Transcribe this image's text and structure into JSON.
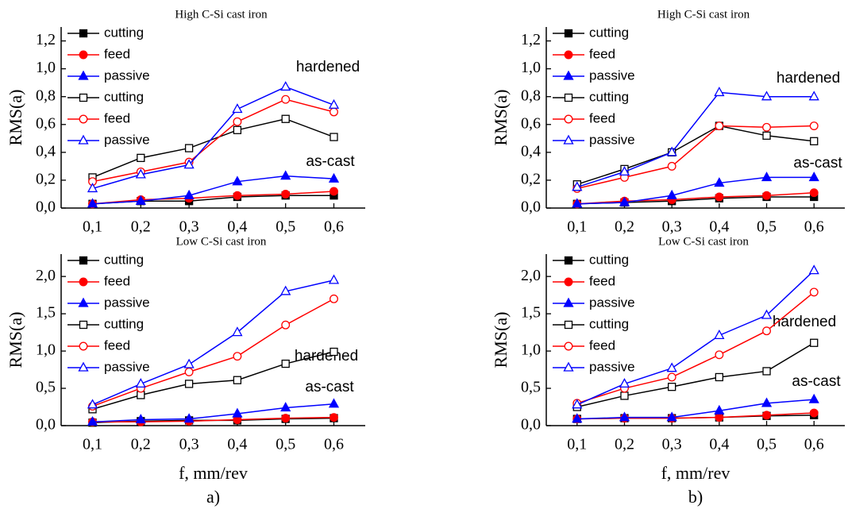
{
  "chart_data": [
    {
      "type": "line",
      "title": "High C-Si cast iron",
      "y_label": "RMS(a)",
      "x": [
        0.1,
        0.2,
        0.3,
        0.4,
        0.5,
        0.6
      ],
      "xlim": [
        0.035,
        0.665
      ],
      "xticks": [
        {
          "value": 0.1,
          "label": "0,1"
        },
        {
          "value": 0.2,
          "label": "0,2"
        },
        {
          "value": 0.3,
          "label": "0,3"
        },
        {
          "value": 0.4,
          "label": "0,4"
        },
        {
          "value": 0.5,
          "label": "0,5"
        },
        {
          "value": 0.6,
          "label": "0,6"
        }
      ],
      "ylim": [
        0,
        1.3
      ],
      "yticks": [
        {
          "value": 0,
          "label": "0,0"
        },
        {
          "value": 0.2,
          "label": "0,2"
        },
        {
          "value": 0.4,
          "label": "0,4"
        },
        {
          "value": 0.6,
          "label": "0,6"
        },
        {
          "value": 0.8,
          "label": "0,8"
        },
        {
          "value": 1.0,
          "label": "1,0"
        },
        {
          "value": 1.2,
          "label": "1,2"
        }
      ],
      "annotations": [
        "hardened",
        "as-cast"
      ],
      "series": [
        {
          "name": "cutting",
          "color": "#000000",
          "marker": "square",
          "filled": true,
          "values": [
            0.03,
            0.05,
            0.05,
            0.08,
            0.09,
            0.09
          ]
        },
        {
          "name": "feed",
          "color": "#ff0000",
          "marker": "circle",
          "filled": true,
          "values": [
            0.03,
            0.06,
            0.07,
            0.09,
            0.1,
            0.12
          ]
        },
        {
          "name": "passive",
          "color": "#0000ff",
          "marker": "triangle",
          "filled": true,
          "values": [
            0.03,
            0.05,
            0.09,
            0.19,
            0.23,
            0.21
          ]
        },
        {
          "name": "cutting",
          "color": "#000000",
          "marker": "square",
          "filled": false,
          "values": [
            0.22,
            0.36,
            0.43,
            0.56,
            0.64,
            0.51
          ]
        },
        {
          "name": "feed",
          "color": "#ff0000",
          "marker": "circle",
          "filled": false,
          "values": [
            0.19,
            0.26,
            0.33,
            0.62,
            0.78,
            0.69
          ]
        },
        {
          "name": "passive",
          "color": "#0000ff",
          "marker": "triangle",
          "filled": false,
          "values": [
            0.14,
            0.24,
            0.31,
            0.71,
            0.87,
            0.74
          ]
        }
      ]
    },
    {
      "type": "line",
      "title": "High C-Si cast iron",
      "y_label": "RMS(a)",
      "x": [
        0.1,
        0.2,
        0.3,
        0.4,
        0.5,
        0.6
      ],
      "xlim": [
        0.035,
        0.665
      ],
      "xticks": [
        {
          "value": 0.1,
          "label": "0,1"
        },
        {
          "value": 0.2,
          "label": "0,2"
        },
        {
          "value": 0.3,
          "label": "0,3"
        },
        {
          "value": 0.4,
          "label": "0,4"
        },
        {
          "value": 0.5,
          "label": "0,5"
        },
        {
          "value": 0.6,
          "label": "0,6"
        }
      ],
      "ylim": [
        0,
        1.3
      ],
      "yticks": [
        {
          "value": 0,
          "label": "0,0"
        },
        {
          "value": 0.2,
          "label": "0,2"
        },
        {
          "value": 0.4,
          "label": "0,4"
        },
        {
          "value": 0.6,
          "label": "0,6"
        },
        {
          "value": 0.8,
          "label": "0,8"
        },
        {
          "value": 1.0,
          "label": "1,0"
        },
        {
          "value": 1.2,
          "label": "1,2"
        }
      ],
      "annotations": [
        "hardened",
        "as-cast"
      ],
      "series": [
        {
          "name": "cutting",
          "color": "#000000",
          "marker": "square",
          "filled": true,
          "values": [
            0.03,
            0.04,
            0.05,
            0.07,
            0.08,
            0.08
          ]
        },
        {
          "name": "feed",
          "color": "#ff0000",
          "marker": "circle",
          "filled": true,
          "values": [
            0.03,
            0.05,
            0.06,
            0.08,
            0.09,
            0.11
          ]
        },
        {
          "name": "passive",
          "color": "#0000ff",
          "marker": "triangle",
          "filled": true,
          "values": [
            0.03,
            0.04,
            0.09,
            0.18,
            0.22,
            0.22
          ]
        },
        {
          "name": "cutting",
          "color": "#000000",
          "marker": "square",
          "filled": false,
          "values": [
            0.17,
            0.28,
            0.4,
            0.59,
            0.52,
            0.48
          ]
        },
        {
          "name": "feed",
          "color": "#ff0000",
          "marker": "circle",
          "filled": false,
          "values": [
            0.14,
            0.22,
            0.3,
            0.59,
            0.58,
            0.59
          ]
        },
        {
          "name": "passive",
          "color": "#0000ff",
          "marker": "triangle",
          "filled": false,
          "values": [
            0.15,
            0.26,
            0.4,
            0.83,
            0.8,
            0.8
          ]
        }
      ]
    },
    {
      "type": "line",
      "title": "Low C-Si cast iron",
      "y_label": "RMS(a)",
      "x_label": "f, mm/rev",
      "panel_label": "a)",
      "x": [
        0.1,
        0.2,
        0.3,
        0.4,
        0.5,
        0.6
      ],
      "xlim": [
        0.035,
        0.665
      ],
      "xticks": [
        {
          "value": 0.1,
          "label": "0,1"
        },
        {
          "value": 0.2,
          "label": "0,2"
        },
        {
          "value": 0.3,
          "label": "0,3"
        },
        {
          "value": 0.4,
          "label": "0,4"
        },
        {
          "value": 0.5,
          "label": "0,5"
        },
        {
          "value": 0.6,
          "label": "0,6"
        }
      ],
      "ylim": [
        0,
        2.3
      ],
      "yticks": [
        {
          "value": 0,
          "label": "0,0"
        },
        {
          "value": 0.5,
          "label": "0,5"
        },
        {
          "value": 1.0,
          "label": "1,0"
        },
        {
          "value": 1.5,
          "label": "1,5"
        },
        {
          "value": 2.0,
          "label": "2,0"
        }
      ],
      "annotations": [
        "hardened",
        "as-cast"
      ],
      "series": [
        {
          "name": "cutting",
          "color": "#000000",
          "marker": "square",
          "filled": true,
          "values": [
            0.04,
            0.06,
            0.07,
            0.07,
            0.09,
            0.1
          ]
        },
        {
          "name": "feed",
          "color": "#ff0000",
          "marker": "circle",
          "filled": true,
          "values": [
            0.05,
            0.05,
            0.06,
            0.08,
            0.1,
            0.11
          ]
        },
        {
          "name": "passive",
          "color": "#0000ff",
          "marker": "triangle",
          "filled": true,
          "values": [
            0.05,
            0.08,
            0.09,
            0.16,
            0.24,
            0.29
          ]
        },
        {
          "name": "cutting",
          "color": "#000000",
          "marker": "square",
          "filled": false,
          "values": [
            0.22,
            0.41,
            0.56,
            0.61,
            0.83,
            0.99
          ]
        },
        {
          "name": "feed",
          "color": "#ff0000",
          "marker": "circle",
          "filled": false,
          "values": [
            0.26,
            0.5,
            0.72,
            0.93,
            1.35,
            1.7
          ]
        },
        {
          "name": "passive",
          "color": "#0000ff",
          "marker": "triangle",
          "filled": false,
          "values": [
            0.28,
            0.56,
            0.82,
            1.25,
            1.8,
            1.95
          ]
        }
      ]
    },
    {
      "type": "line",
      "title": "Low C-Si cast iron",
      "y_label": "RMS(a)",
      "x_label": "f, mm/rev",
      "panel_label": "b)",
      "x": [
        0.1,
        0.2,
        0.3,
        0.4,
        0.5,
        0.6
      ],
      "xlim": [
        0.035,
        0.665
      ],
      "xticks": [
        {
          "value": 0.1,
          "label": "0,1"
        },
        {
          "value": 0.2,
          "label": "0,2"
        },
        {
          "value": 0.3,
          "label": "0,3"
        },
        {
          "value": 0.4,
          "label": "0,4"
        },
        {
          "value": 0.5,
          "label": "0,5"
        },
        {
          "value": 0.6,
          "label": "0,6"
        }
      ],
      "ylim": [
        0,
        2.3
      ],
      "yticks": [
        {
          "value": 0,
          "label": "0,0"
        },
        {
          "value": 0.5,
          "label": "0,5"
        },
        {
          "value": 1.0,
          "label": "1,0"
        },
        {
          "value": 1.5,
          "label": "1,5"
        },
        {
          "value": 2.0,
          "label": "2,0"
        }
      ],
      "annotations": [
        "hardened",
        "as-cast"
      ],
      "series": [
        {
          "name": "cutting",
          "color": "#000000",
          "marker": "square",
          "filled": true,
          "values": [
            0.09,
            0.1,
            0.1,
            0.11,
            0.13,
            0.14
          ]
        },
        {
          "name": "feed",
          "color": "#ff0000",
          "marker": "circle",
          "filled": true,
          "values": [
            0.09,
            0.1,
            0.1,
            0.11,
            0.14,
            0.17
          ]
        },
        {
          "name": "passive",
          "color": "#0000ff",
          "marker": "triangle",
          "filled": true,
          "values": [
            0.09,
            0.11,
            0.11,
            0.2,
            0.3,
            0.35
          ]
        },
        {
          "name": "cutting",
          "color": "#000000",
          "marker": "square",
          "filled": false,
          "values": [
            0.25,
            0.4,
            0.52,
            0.65,
            0.73,
            1.11
          ]
        },
        {
          "name": "feed",
          "color": "#ff0000",
          "marker": "circle",
          "filled": false,
          "values": [
            0.3,
            0.5,
            0.65,
            0.95,
            1.27,
            1.79
          ]
        },
        {
          "name": "passive",
          "color": "#0000ff",
          "marker": "triangle",
          "filled": false,
          "values": [
            0.28,
            0.56,
            0.77,
            1.21,
            1.48,
            2.08
          ]
        }
      ]
    }
  ]
}
